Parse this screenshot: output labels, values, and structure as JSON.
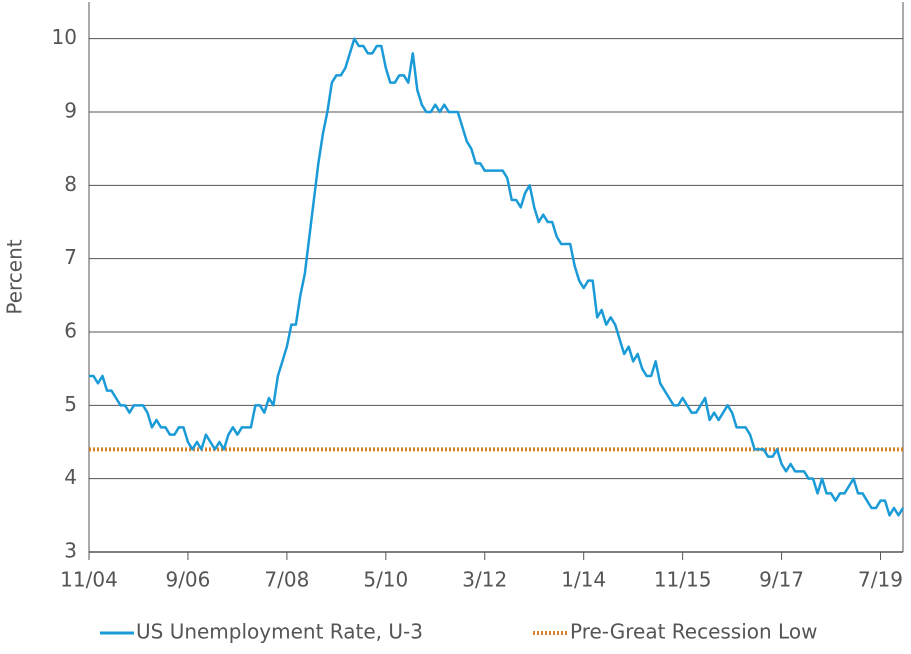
{
  "chart_data": {
    "type": "line",
    "y_label": "Percent",
    "categories": [
      "11/04",
      null,
      null,
      null,
      null,
      null,
      null,
      null,
      null,
      null,
      null,
      null,
      null,
      null,
      null,
      null,
      null,
      null,
      null,
      null,
      null,
      null,
      "9/06",
      null,
      null,
      null,
      null,
      null,
      null,
      null,
      null,
      null,
      null,
      null,
      null,
      null,
      null,
      null,
      null,
      null,
      null,
      null,
      null,
      null,
      "7/08",
      null,
      null,
      null,
      null,
      null,
      null,
      null,
      null,
      null,
      null,
      null,
      null,
      null,
      null,
      null,
      null,
      null,
      null,
      null,
      null,
      null,
      "5/10",
      null,
      null,
      null,
      null,
      null,
      null,
      null,
      null,
      null,
      null,
      null,
      null,
      null,
      null,
      null,
      null,
      null,
      null,
      null,
      null,
      null,
      "3/12",
      null,
      null,
      null,
      null,
      null,
      null,
      null,
      null,
      null,
      null,
      null,
      null,
      null,
      null,
      null,
      null,
      null,
      null,
      null,
      null,
      null,
      "1/14",
      null,
      null,
      null,
      null,
      null,
      null,
      null,
      null,
      null,
      null,
      null,
      null,
      null,
      null,
      null,
      null,
      null,
      null,
      null,
      null,
      null,
      "11/15",
      null,
      null,
      null,
      null,
      null,
      null,
      null,
      null,
      null,
      null,
      null,
      null,
      null,
      null,
      null,
      null,
      null,
      null,
      null,
      null,
      null,
      "9/17",
      null,
      null,
      null,
      null,
      null,
      null,
      null,
      null,
      null,
      null,
      null,
      null,
      null,
      null,
      null,
      null,
      null,
      null,
      null,
      null,
      null,
      "7/19",
      null,
      null,
      null,
      null,
      null
    ],
    "series": [
      {
        "name": "US Unemployment Rate, U-3",
        "color": "#1a9bd7",
        "values": [
          5.4,
          5.4,
          5.3,
          5.4,
          5.2,
          5.2,
          5.1,
          5.0,
          5.0,
          4.9,
          5.0,
          5.0,
          5.0,
          4.9,
          4.7,
          4.8,
          4.7,
          4.7,
          4.6,
          4.6,
          4.7,
          4.7,
          4.5,
          4.4,
          4.5,
          4.4,
          4.6,
          4.5,
          4.4,
          4.5,
          4.4,
          4.6,
          4.7,
          4.6,
          4.7,
          4.7,
          4.7,
          5.0,
          5.0,
          4.9,
          5.1,
          5.0,
          5.4,
          5.6,
          5.8,
          6.1,
          6.1,
          6.5,
          6.8,
          7.3,
          7.8,
          8.3,
          8.7,
          9.0,
          9.4,
          9.5,
          9.5,
          9.6,
          9.8,
          10.0,
          9.9,
          9.9,
          9.8,
          9.8,
          9.9,
          9.9,
          9.6,
          9.4,
          9.4,
          9.5,
          9.5,
          9.4,
          9.8,
          9.3,
          9.1,
          9.0,
          9.0,
          9.1,
          9.0,
          9.1,
          9.0,
          9.0,
          9.0,
          8.8,
          8.6,
          8.5,
          8.3,
          8.3,
          8.2,
          8.2,
          8.2,
          8.2,
          8.2,
          8.1,
          7.8,
          7.8,
          7.7,
          7.9,
          8.0,
          7.7,
          7.5,
          7.6,
          7.5,
          7.5,
          7.3,
          7.2,
          7.2,
          7.2,
          6.9,
          6.7,
          6.6,
          6.7,
          6.7,
          6.2,
          6.3,
          6.1,
          6.2,
          6.1,
          5.9,
          5.7,
          5.8,
          5.6,
          5.7,
          5.5,
          5.4,
          5.4,
          5.6,
          5.3,
          5.2,
          5.1,
          5.0,
          5.0,
          5.1,
          5.0,
          4.9,
          4.9,
          5.0,
          5.1,
          4.8,
          4.9,
          4.8,
          4.9,
          5.0,
          4.9,
          4.7,
          4.7,
          4.7,
          4.6,
          4.4,
          4.4,
          4.4,
          4.3,
          4.3,
          4.4,
          4.2,
          4.1,
          4.2,
          4.1,
          4.1,
          4.1,
          4.0,
          4.0,
          3.8,
          4.0,
          3.8,
          3.8,
          3.7,
          3.8,
          3.8,
          3.9,
          4.0,
          3.8,
          3.8,
          3.7,
          3.6,
          3.6,
          3.7,
          3.7,
          3.5,
          3.6,
          3.5,
          3.6
        ]
      }
    ],
    "hline": {
      "name": "Pre-Great Recession Low",
      "value": 4.4,
      "color": "#d9822b",
      "style": "dotted"
    },
    "ylim": [
      3,
      10.5
    ],
    "yticks": [
      3,
      4,
      5,
      6,
      7,
      8,
      9,
      10
    ],
    "grid": true,
    "legend": "bottom"
  }
}
